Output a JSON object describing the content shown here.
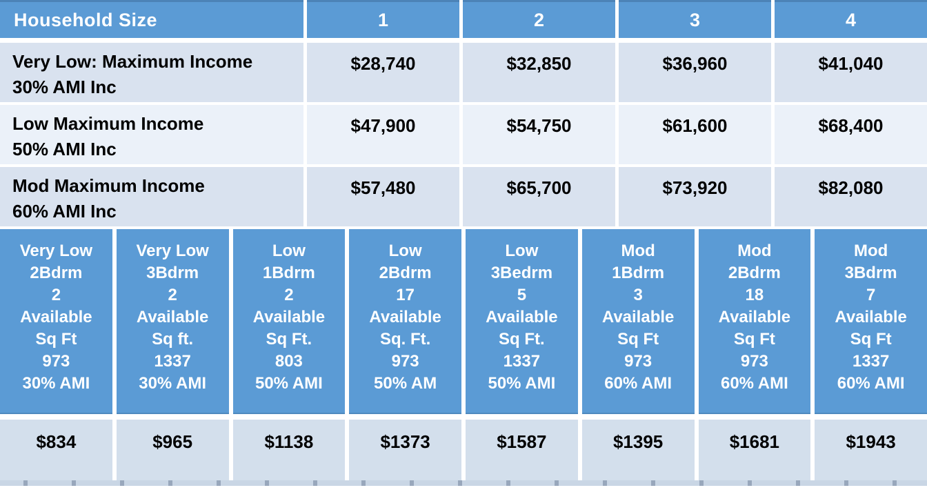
{
  "colors": {
    "header_blue": "#5B9BD5",
    "row_band_dark": "#D9E2EF",
    "row_band_light": "#EBF1F9",
    "rent_row": "#D3DFEC",
    "bottom_sliver": "#C9D6E5",
    "header_text": "#FFFFFF",
    "body_text": "#000000"
  },
  "income_table": {
    "header": {
      "label": "Household Size",
      "columns": [
        "1",
        "2",
        "3",
        "4"
      ]
    },
    "rows": [
      {
        "label_line1": "Very Low: Maximum Income",
        "label_line2": "30% AMI Inc",
        "values": [
          "$28,740",
          "$32,850",
          "$36,960",
          "$41,040"
        ]
      },
      {
        "label_line1": "Low Maximum Income",
        "label_line2": "50% AMI Inc",
        "values": [
          "$47,900",
          "$54,750",
          "$61,600",
          "$68,400"
        ]
      },
      {
        "label_line1": "Mod Maximum Income",
        "label_line2": "60% AMI Inc",
        "values": [
          "$57,480",
          "$65,700",
          "$73,920",
          "$82,080"
        ]
      }
    ]
  },
  "units_table": {
    "columns": [
      {
        "lines": [
          "Very Low",
          "2Bdrm",
          "2",
          "Available",
          "Sq Ft",
          "973",
          "30% AMI"
        ],
        "rent": "$834"
      },
      {
        "lines": [
          "Very Low",
          "3Bdrm",
          "2",
          "Available",
          "Sq ft.",
          "1337",
          "30% AMI"
        ],
        "rent": "$965"
      },
      {
        "lines": [
          "Low",
          "1Bdrm",
          "2",
          "Available",
          "Sq Ft.",
          "803",
          "50% AMI"
        ],
        "rent": "$1138"
      },
      {
        "lines": [
          "Low",
          "2Bdrm",
          "17",
          "Available",
          "Sq. Ft.",
          "973",
          "50% AM"
        ],
        "rent": "$1373"
      },
      {
        "lines": [
          "Low",
          "3Bedrm",
          "5",
          "Available",
          "Sq Ft.",
          "1337",
          "50% AMI"
        ],
        "rent": "$1587"
      },
      {
        "lines": [
          "Mod",
          "1Bdrm",
          "3",
          "Available",
          "Sq Ft",
          "973",
          "60% AMI"
        ],
        "rent": "$1395"
      },
      {
        "lines": [
          "Mod",
          "2Bdrm",
          "18",
          "Available",
          "Sq Ft",
          "973",
          "60% AMI"
        ],
        "rent": "$1681"
      },
      {
        "lines": [
          "Mod",
          "3Bdrm",
          "7",
          "Available",
          "Sq Ft",
          "1337",
          "60% AMI"
        ],
        "rent": "$1943"
      }
    ]
  }
}
